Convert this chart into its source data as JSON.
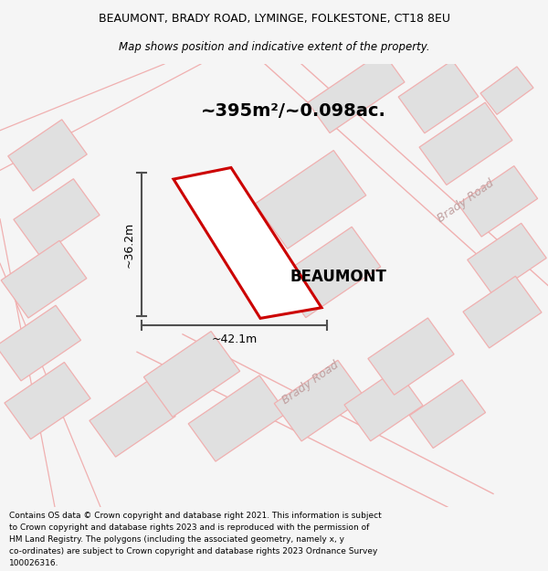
{
  "title_line1": "BEAUMONT, BRADY ROAD, LYMINGE, FOLKESTONE, CT18 8EU",
  "title_line2": "Map shows position and indicative extent of the property.",
  "area_text": "~395m²/~0.098ac.",
  "property_label": "BEAUMONT",
  "dim_width": "~42.1m",
  "dim_height": "~36.2m",
  "road_label": "Brady Road",
  "footer_lines": [
    "Contains OS data © Crown copyright and database right 2021. This information is subject",
    "to Crown copyright and database rights 2023 and is reproduced with the permission of",
    "HM Land Registry. The polygons (including the associated geometry, namely x, y",
    "co-ordinates) are subject to Crown copyright and database rights 2023 Ordnance Survey",
    "100026316."
  ],
  "bg_color": "#f5f5f5",
  "map_bg": "#ffffff",
  "property_color": "#cc0000",
  "building_edge": "#f0b0b0",
  "building_fill": "#e0e0e0",
  "road_line_color": "#f0b0b0",
  "dim_color": "#505050",
  "road_text_color": "#c0a0a0"
}
